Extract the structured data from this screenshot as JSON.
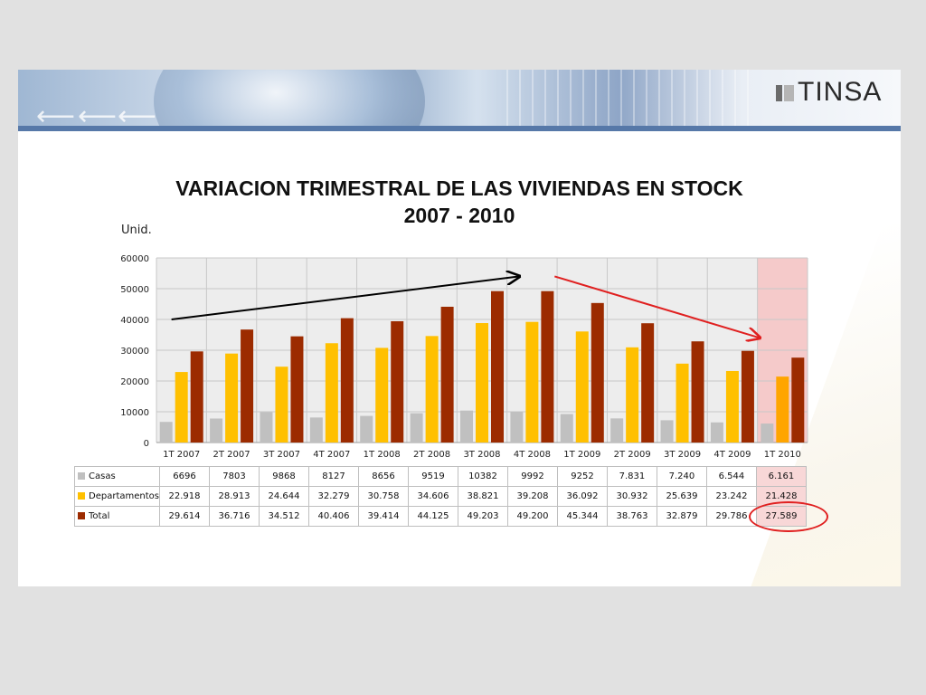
{
  "brand": {
    "logo_text": "TINSA"
  },
  "chart_data": {
    "type": "bar",
    "title": "VARIACION TRIMESTRAL DE LAS VIVIENDAS EN STOCK",
    "subtitle": "2007 - 2010",
    "ylabel": "Unid.",
    "ylim": [
      0,
      60000
    ],
    "yticks": [
      "0",
      "10000",
      "20000",
      "30000",
      "40000",
      "50000",
      "60000"
    ],
    "grid": true,
    "categories": [
      "1T 2007",
      "2T 2007",
      "3T 2007",
      "4T 2007",
      "1T 2008",
      "2T 2008",
      "3T 2008",
      "4T 2008",
      "1T 2009",
      "2T 2009",
      "3T 2009",
      "4T 2009",
      "1T 2010"
    ],
    "highlighted_category": "1T 2010",
    "series": [
      {
        "name": "Casas",
        "color": "#c0c0c0",
        "values": [
          6696,
          7803,
          9868,
          8127,
          8656,
          9519,
          10382,
          9992,
          9252,
          7831,
          7240,
          6544,
          6161
        ],
        "labels": [
          "6696",
          "7803",
          "9868",
          "8127",
          "8656",
          "9519",
          "10382",
          "9992",
          "9252",
          "7.831",
          "7.240",
          "6.544",
          "6.161"
        ]
      },
      {
        "name": "Departamentos",
        "color": "#ffc000",
        "highlight_color": "#ffa500",
        "values": [
          22918,
          28913,
          24644,
          32279,
          30758,
          34606,
          38821,
          39208,
          36092,
          30932,
          25639,
          23242,
          21428
        ],
        "labels": [
          "22.918",
          "28.913",
          "24.644",
          "32.279",
          "30.758",
          "34.606",
          "38.821",
          "39.208",
          "36.092",
          "30.932",
          "25.639",
          "23.242",
          "21.428"
        ]
      },
      {
        "name": "Total",
        "color": "#9c2b00",
        "values": [
          29614,
          36716,
          34512,
          40406,
          39414,
          44125,
          49203,
          49200,
          45344,
          38763,
          32879,
          29786,
          27589
        ],
        "labels": [
          "29.614",
          "36.716",
          "34.512",
          "40.406",
          "39.414",
          "44.125",
          "49.203",
          "49.200",
          "45.344",
          "38.763",
          "32.879",
          "29.786",
          "27.589"
        ]
      }
    ],
    "annotations": [
      {
        "type": "trend-arrow",
        "color": "#000000",
        "from": [
          "1T 2007",
          40000
        ],
        "to": [
          "4T 2008",
          54000
        ]
      },
      {
        "type": "trend-arrow",
        "color": "#e02020",
        "from": [
          "4T 2008",
          54000
        ],
        "to": [
          "1T 2010",
          34000
        ]
      },
      {
        "type": "circle",
        "color": "#e02020",
        "target": "Total 1T 2010"
      }
    ]
  }
}
